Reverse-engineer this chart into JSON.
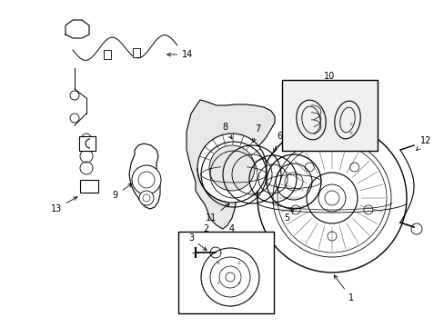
{
  "bg_color": "#ffffff",
  "line_color": "#000000",
  "figsize": [
    4.89,
    3.6
  ],
  "dpi": 100,
  "xlim": [
    0,
    489
  ],
  "ylim": [
    0,
    360
  ]
}
